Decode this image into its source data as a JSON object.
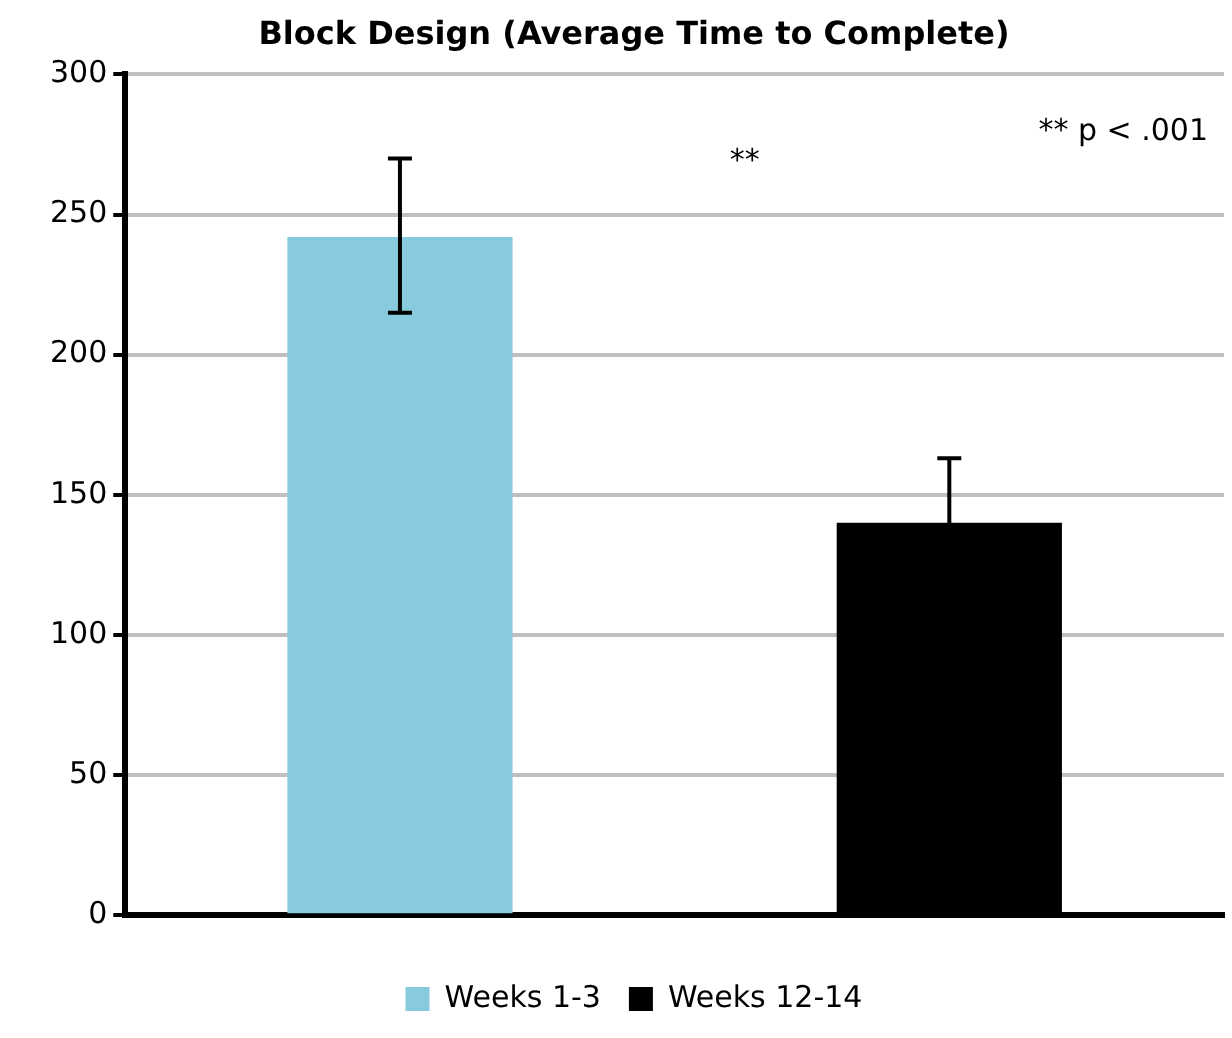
{
  "chart_data": {
    "type": "bar",
    "title": "Block Design (Average Time to Complete)",
    "categories": [
      null,
      null
    ],
    "series": [
      {
        "name": "Weeks 1-3",
        "color": "#89cbde",
        "values": [
          242,
          null
        ],
        "errors": [
          [
            215,
            270
          ],
          null
        ]
      },
      {
        "name": "Weeks 12-14",
        "color": "#000000",
        "values": [
          null,
          140
        ],
        "errors": [
          null,
          23
        ]
      }
    ],
    "ylim": [
      0,
      300
    ],
    "yticks": [
      0,
      50,
      100,
      150,
      200,
      250,
      300
    ],
    "grid": "y",
    "legend": "bottom",
    "annotations": [
      "**",
      "** p < .001"
    ]
  }
}
